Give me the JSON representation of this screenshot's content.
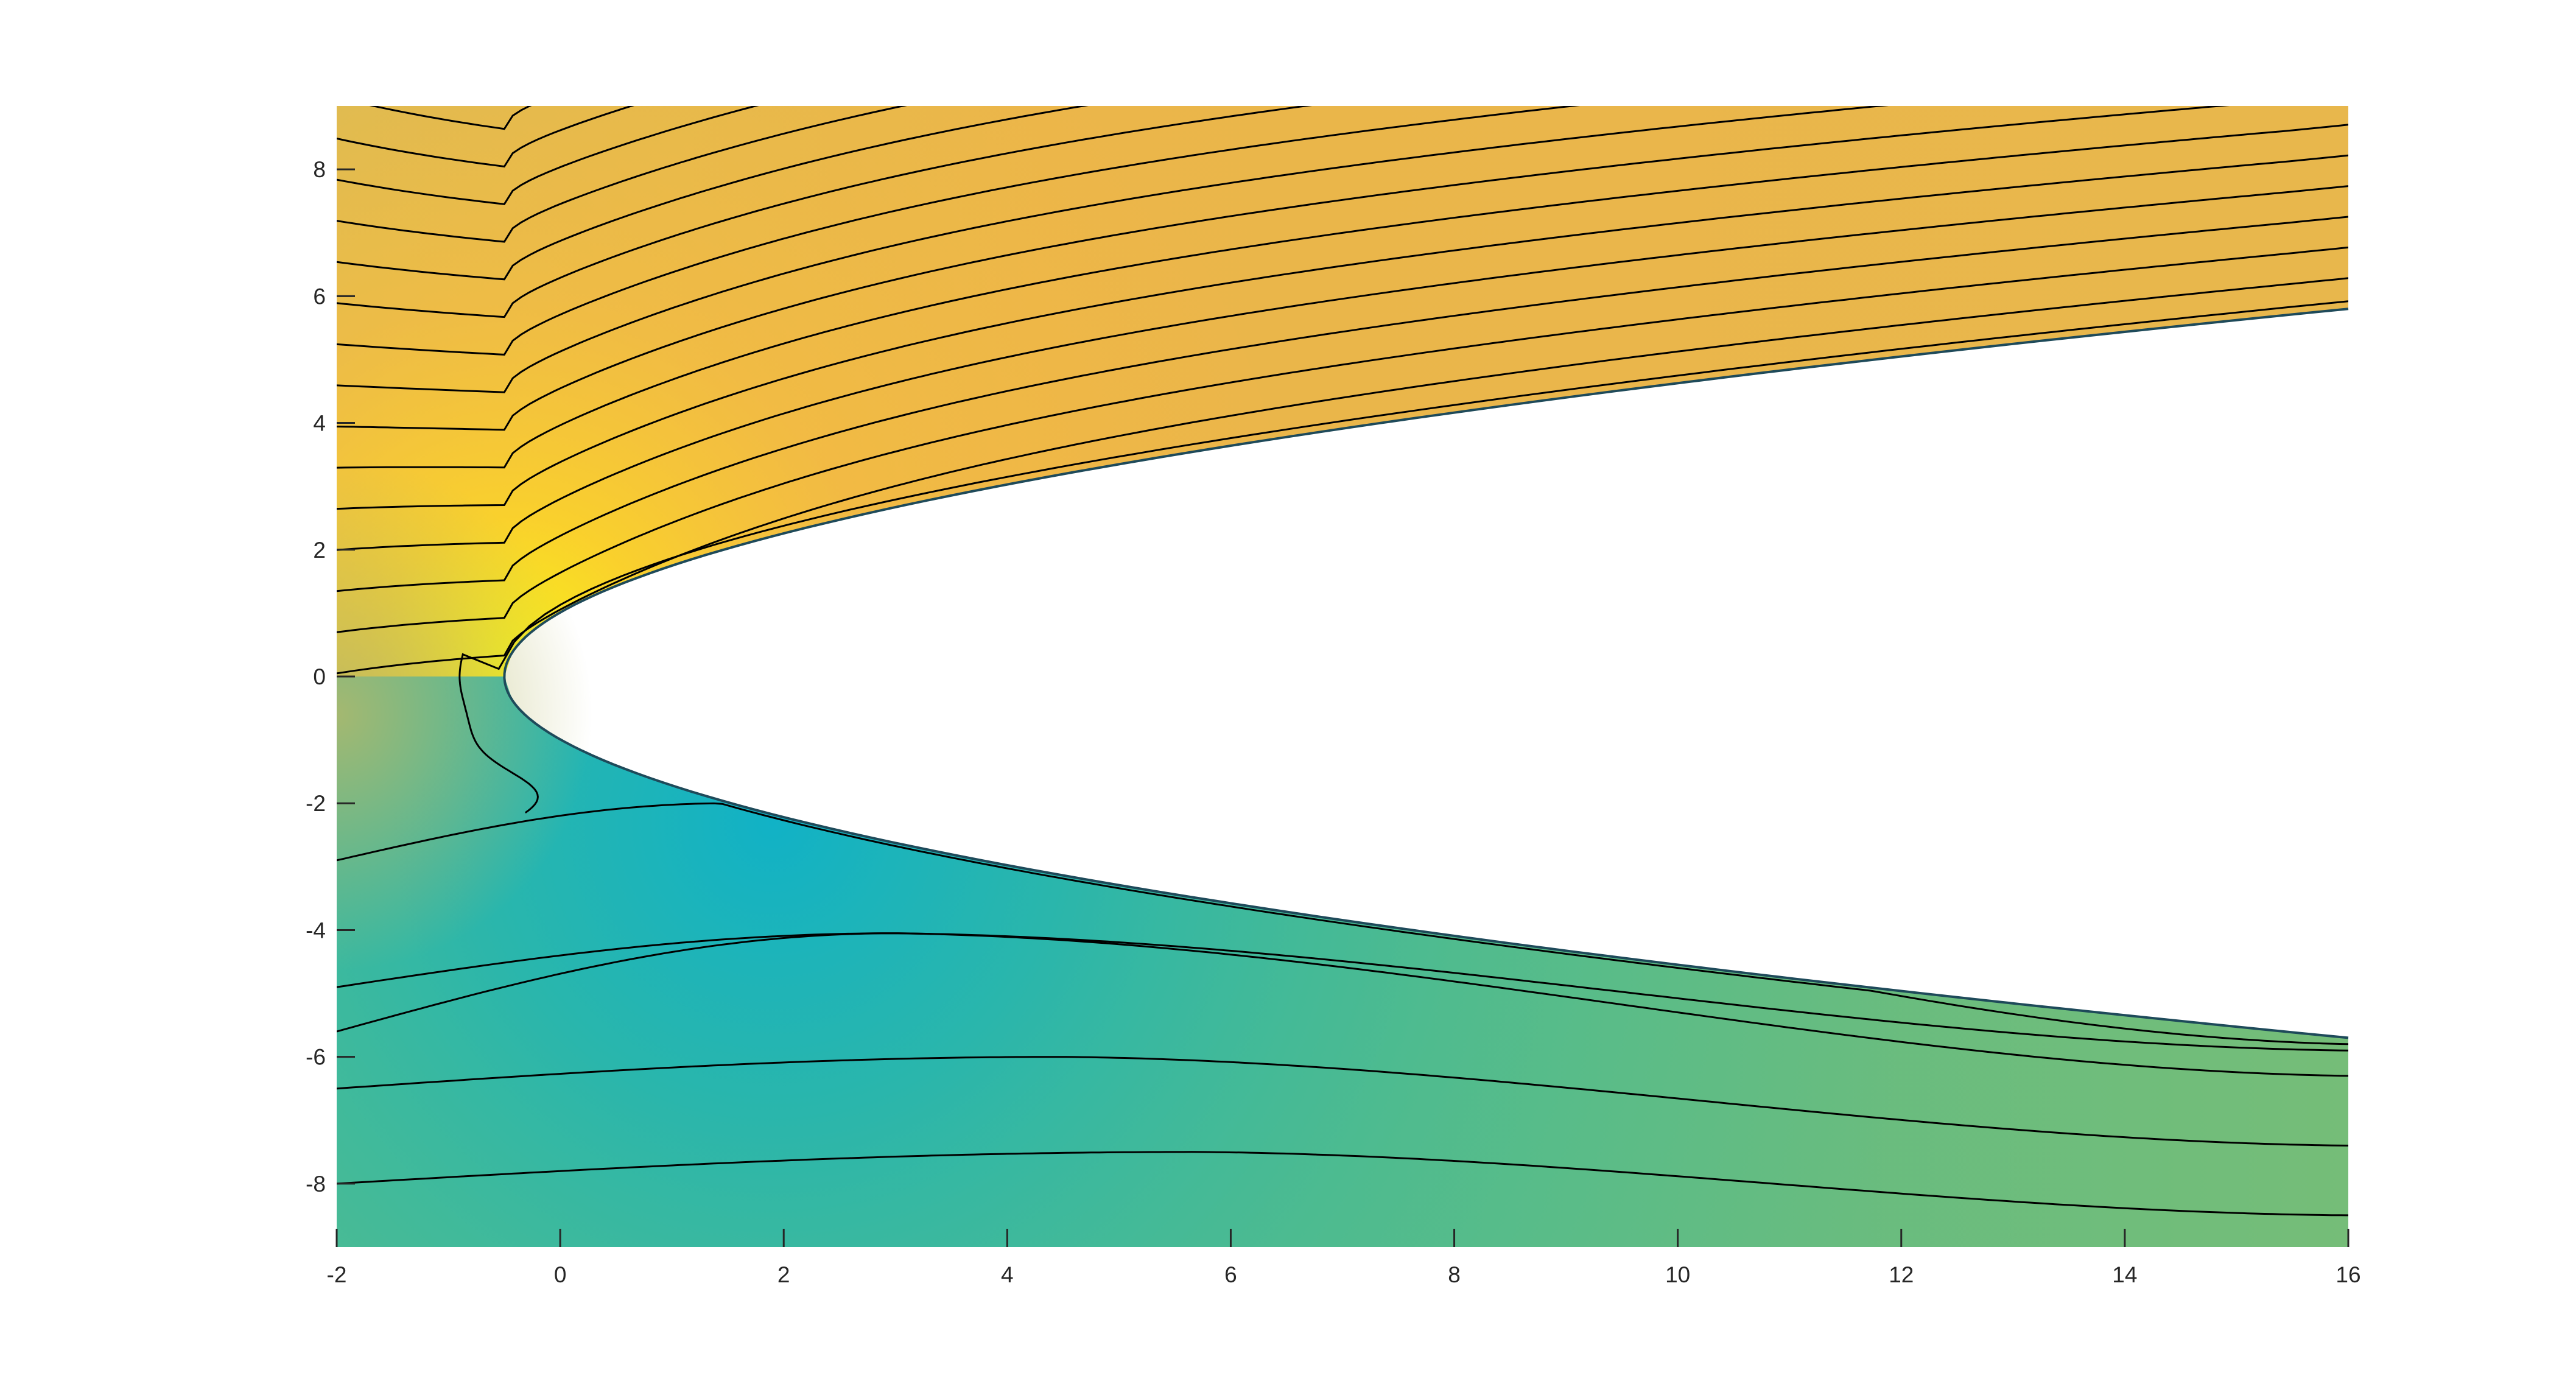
{
  "chart_data": {
    "type": "contour",
    "title": "",
    "xlabel": "",
    "ylabel": "",
    "xlim": [
      -2,
      16
    ],
    "ylim": [
      -9,
      9
    ],
    "x_ticks": [
      -2,
      0,
      2,
      4,
      6,
      8,
      10,
      12,
      14,
      16
    ],
    "y_ticks": [
      -8,
      -6,
      -4,
      -2,
      0,
      2,
      4,
      6,
      8
    ],
    "x_tick_labels": [
      "-2",
      "0",
      "2",
      "4",
      "6",
      "8",
      "10",
      "12",
      "14",
      "16"
    ],
    "y_tick_labels": [
      "-8",
      "-6",
      "-4",
      "-2",
      "0",
      "2",
      "4",
      "6",
      "8"
    ],
    "obstacle": {
      "shape": "parabola",
      "nose": [
        -0.5,
        0
      ],
      "upper_edge_at_x16": 5.8,
      "lower_edge_at_x16": -5.7
    },
    "streamlines_above": 17,
    "streamlines_below": 5,
    "fill_colormap": [
      "#11b4c8",
      "#2bb8a8",
      "#5bbd8a",
      "#6fbd7a",
      "#d6b856",
      "#e9b84c",
      "#ffbe3c",
      "#f8f218"
    ],
    "line_color": "#000000",
    "grid": false,
    "legend": "none"
  }
}
